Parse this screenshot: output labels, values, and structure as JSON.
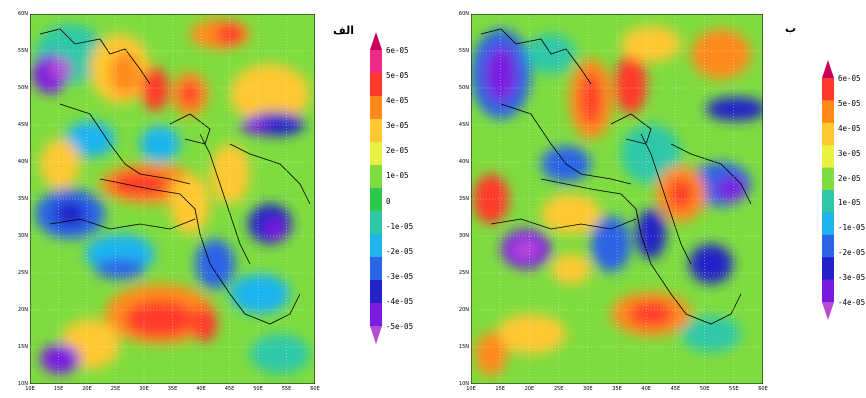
{
  "figure": {
    "panels": [
      {
        "id": "a",
        "label": "الف",
        "lat_ticks": [
          "60N",
          "55N",
          "50N",
          "45N",
          "40N",
          "35N",
          "30N",
          "25N",
          "20N",
          "15N",
          "10N"
        ],
        "lon_ticks": [
          "10E",
          "15E",
          "20E",
          "25E",
          "30E",
          "35E",
          "40E",
          "45E",
          "50E",
          "55E",
          "60E"
        ],
        "colorbar_labels": [
          "6e-05",
          "5e-05",
          "4e-05",
          "3e-05",
          "2e-05",
          "1e-05",
          "0",
          "-1e-05",
          "-2e-05",
          "-3e-05",
          "-4e-05",
          "-5e-05"
        ],
        "colorbar_colors": [
          "#c8005a",
          "#ee2a82",
          "#ff3a2a",
          "#ff8a1a",
          "#ffc830",
          "#e8f040",
          "#7fdc40",
          "#2ec84a",
          "#2ec8a8",
          "#1eb4f0",
          "#2c64e6",
          "#2222c8",
          "#7a1ae0",
          "#b84ad8"
        ]
      },
      {
        "id": "b",
        "label": "ب",
        "lat_ticks": [
          "60N",
          "55N",
          "50N",
          "45N",
          "40N",
          "35N",
          "30N",
          "25N",
          "20N",
          "15N",
          "10N"
        ],
        "lon_ticks": [
          "10E",
          "15E",
          "20E",
          "25E",
          "30E",
          "35E",
          "40E",
          "45E",
          "50E",
          "55E",
          "60E"
        ],
        "colorbar_labels": [
          "6e-05",
          "5e-05",
          "4e-05",
          "3e-05",
          "2e-05",
          "1e-05",
          "-1e-05",
          "-2e-05",
          "-3e-05",
          "-4e-05"
        ],
        "colorbar_colors": [
          "#c8005a",
          "#ff3a2a",
          "#ff8a1a",
          "#ffc830",
          "#e8f040",
          "#7fdc40",
          "#2ec8a8",
          "#1eb4f0",
          "#2c64e6",
          "#2222c8",
          "#7a1ae0",
          "#b84ad8"
        ]
      }
    ]
  }
}
